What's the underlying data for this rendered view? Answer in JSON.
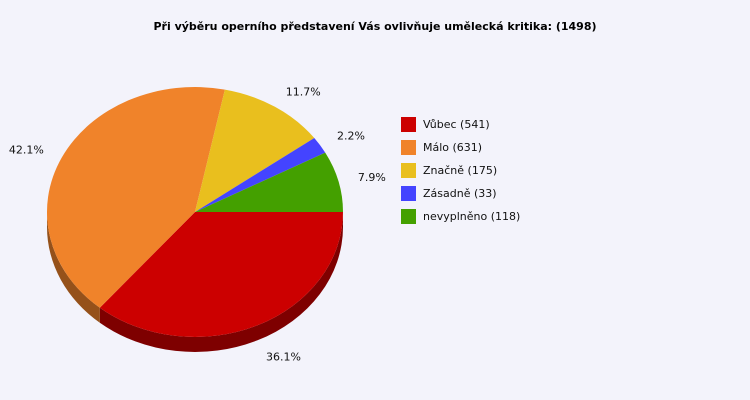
{
  "chart_data": {
    "type": "pie",
    "title": "Při výběru operního představení Vás ovlivňuje umělecká kritika: (1498)",
    "slices": [
      {
        "label": "Vůbec (541)",
        "value": 541,
        "percent_label": "36.1%",
        "color": "#cc0000"
      },
      {
        "label": "Málo (631)",
        "value": 631,
        "percent_label": "42.1%",
        "color": "#f0832a"
      },
      {
        "label": "Značně (175)",
        "value": 175,
        "percent_label": "11.7%",
        "color": "#e9bf1e"
      },
      {
        "label": "Zásadně (33)",
        "value": 33,
        "percent_label": "2.2%",
        "color": "#4444ff"
      },
      {
        "label": "nevyplněno (118)",
        "value": 118,
        "percent_label": "7.9%",
        "color": "#44a000"
      }
    ]
  }
}
